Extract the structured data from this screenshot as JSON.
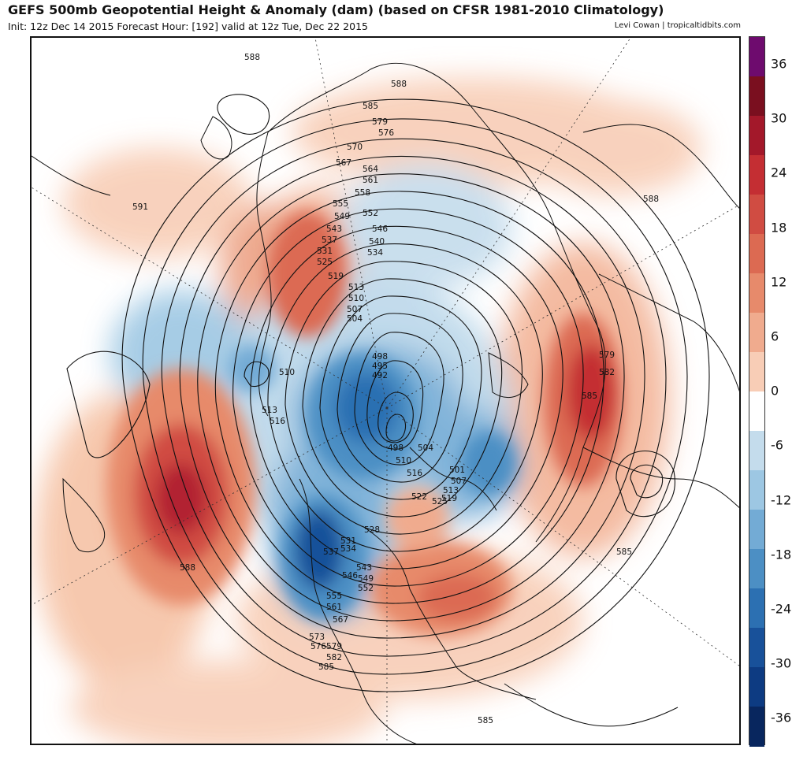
{
  "header": {
    "title": "GEFS 500mb Geopotential Height & Anomaly (dam) (based on CFSR 1981-2010 Climatology)",
    "subtitle": "Init: 12z Dec 14 2015   Forecast Hour: [192]   valid at 12z Tue, Dec 22 2015",
    "credit": "Levi Cowan | tropicaltidbits.com"
  },
  "colorbar": {
    "ticks": [
      "36",
      "30",
      "24",
      "18",
      "12",
      "6",
      "0",
      "-6",
      "-12",
      "-18",
      "-24",
      "-30",
      "-36"
    ],
    "colors": [
      "#6e0b6e",
      "#7a0f1f",
      "#a3182a",
      "#c42e33",
      "#d04c42",
      "#dc6a52",
      "#e78a6b",
      "#f0ab8e",
      "#f8cdb6",
      "#ffffff",
      "#c4dcec",
      "#9dc7e3",
      "#73abd5",
      "#4c8fc4",
      "#2c70b2",
      "#18519a",
      "#0d3b82",
      "#08265e"
    ]
  },
  "map_data": {
    "projection": "north-polar-stereographic",
    "field": "500mb geopotential height (dam) with anomaly shading",
    "contour_labels": [
      "588",
      "588",
      "585",
      "579",
      "576",
      "570",
      "567",
      "564",
      "561",
      "558",
      "555",
      "549",
      "543",
      "537",
      "531",
      "525",
      "519",
      "513",
      "510",
      "507",
      "504",
      "498",
      "495",
      "492",
      "552",
      "546",
      "540",
      "534",
      "510",
      "513",
      "516",
      "498",
      "504",
      "510",
      "516",
      "522",
      "525",
      "519",
      "513",
      "507",
      "501",
      "528",
      "531",
      "534",
      "537",
      "543",
      "546",
      "549",
      "552",
      "555",
      "561",
      "567",
      "573",
      "576",
      "579",
      "582",
      "585",
      "579",
      "582",
      "585",
      "591",
      "588",
      "585",
      "588",
      "585"
    ],
    "anomaly_centers": [
      {
        "name": "north-pacific-ridge",
        "anomaly": 30
      },
      {
        "name": "eastern-us-ridge",
        "anomaly": 24
      },
      {
        "name": "europe-ridge",
        "anomaly": 24
      },
      {
        "name": "polar-vortex-trough",
        "anomaly": -30
      },
      {
        "name": "alaska-west-canada-trough",
        "anomaly": -30
      },
      {
        "name": "west-greenland-ridge",
        "anomaly": 18
      }
    ]
  }
}
